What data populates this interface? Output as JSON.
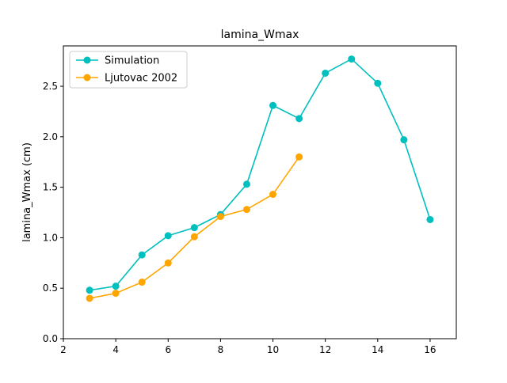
{
  "chart_data": {
    "type": "line",
    "title": "lamina_Wmax",
    "xlabel": "",
    "ylabel": "lamina_Wmax (cm)",
    "xlim": [
      2,
      17
    ],
    "ylim": [
      0.0,
      2.9
    ],
    "xticks": [
      2,
      4,
      6,
      8,
      10,
      12,
      14,
      16
    ],
    "xtick_labels": [
      "2",
      "4",
      "6",
      "8",
      "10",
      "12",
      "14",
      "16"
    ],
    "yticks": [
      0.0,
      0.5,
      1.0,
      1.5,
      2.0,
      2.5
    ],
    "ytick_labels": [
      "0.0",
      "0.5",
      "1.0",
      "1.5",
      "2.0",
      "2.5"
    ],
    "grid": false,
    "legend_position": "top-left",
    "series": [
      {
        "name": "Simulation",
        "color": "#00bfbf",
        "x": [
          3,
          4,
          5,
          6,
          7,
          8,
          9,
          10,
          11,
          12,
          13,
          14,
          15,
          16
        ],
        "y": [
          0.48,
          0.52,
          0.83,
          1.02,
          1.1,
          1.23,
          1.53,
          2.31,
          2.18,
          2.63,
          2.77,
          2.53,
          1.97,
          1.18
        ]
      },
      {
        "name": "Ljutovac 2002",
        "color": "#ffa500",
        "x": [
          3,
          4,
          5,
          6,
          7,
          8,
          9,
          10,
          11
        ],
        "y": [
          0.4,
          0.45,
          0.56,
          0.75,
          1.01,
          1.21,
          1.28,
          1.43,
          1.8
        ]
      }
    ]
  }
}
